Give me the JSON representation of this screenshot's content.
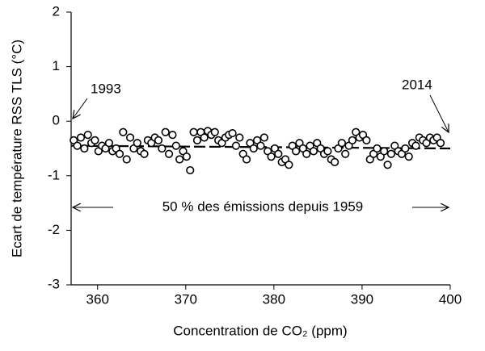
{
  "chart_data": {
    "type": "scatter",
    "xlabel": "Concentration de CO₂ (ppm)",
    "ylabel": "Ecart de température RSS TLS (°C)",
    "annotations": [
      "1993",
      "2014",
      "50 % des émissions depuis 1959"
    ],
    "xlim": [
      357,
      400
    ],
    "xticks": [
      360,
      370,
      380,
      390,
      400
    ],
    "ylim": [
      -3,
      2
    ],
    "yticks": [
      -3,
      -2,
      -1,
      0,
      1,
      2
    ],
    "marker_color": "#ffffff",
    "marker_edge": "#000000",
    "x": [
      357.3,
      357.7,
      358.1,
      358.5,
      358.9,
      359.3,
      359.7,
      360.1,
      360.5,
      360.9,
      361.3,
      361.7,
      362.1,
      362.5,
      362.9,
      363.3,
      363.7,
      364.1,
      364.5,
      364.9,
      365.3,
      365.7,
      366.1,
      366.5,
      366.9,
      367.3,
      367.7,
      368.1,
      368.5,
      368.9,
      369.3,
      369.7,
      370.1,
      370.5,
      370.9,
      371.3,
      371.7,
      372.1,
      372.5,
      372.9,
      373.3,
      373.7,
      374.1,
      374.5,
      374.9,
      375.3,
      375.7,
      376.1,
      376.5,
      376.9,
      377.3,
      377.7,
      378.1,
      378.5,
      378.9,
      379.3,
      379.7,
      380.1,
      380.5,
      380.9,
      381.3,
      381.7,
      382.1,
      382.5,
      382.9,
      383.3,
      383.7,
      384.1,
      384.5,
      384.9,
      385.3,
      385.7,
      386.1,
      386.5,
      386.9,
      387.3,
      387.7,
      388.1,
      388.5,
      388.9,
      389.3,
      389.7,
      390.1,
      390.5,
      390.9,
      391.3,
      391.7,
      392.1,
      392.5,
      392.9,
      393.3,
      393.7,
      394.1,
      394.5,
      394.9,
      395.3,
      395.7,
      396.1,
      396.5,
      396.9,
      397.3,
      397.7,
      398.1,
      398.5,
      398.9
    ],
    "values": [
      -0.35,
      -0.45,
      -0.3,
      -0.5,
      -0.25,
      -0.4,
      -0.35,
      -0.55,
      -0.45,
      -0.5,
      -0.4,
      -0.55,
      -0.5,
      -0.6,
      -0.2,
      -0.7,
      -0.3,
      -0.5,
      -0.4,
      -0.55,
      -0.6,
      -0.35,
      -0.4,
      -0.3,
      -0.35,
      -0.5,
      -0.2,
      -0.6,
      -0.25,
      -0.45,
      -0.7,
      -0.55,
      -0.65,
      -0.9,
      -0.2,
      -0.35,
      -0.2,
      -0.3,
      -0.18,
      -0.25,
      -0.2,
      -0.35,
      -0.4,
      -0.3,
      -0.25,
      -0.22,
      -0.45,
      -0.3,
      -0.6,
      -0.7,
      -0.4,
      -0.5,
      -0.35,
      -0.45,
      -0.3,
      -0.55,
      -0.65,
      -0.5,
      -0.6,
      -0.75,
      -0.7,
      -0.8,
      -0.45,
      -0.55,
      -0.4,
      -0.5,
      -0.6,
      -0.45,
      -0.55,
      -0.4,
      -0.5,
      -0.6,
      -0.55,
      -0.7,
      -0.75,
      -0.5,
      -0.4,
      -0.6,
      -0.45,
      -0.35,
      -0.2,
      -0.3,
      -0.25,
      -0.35,
      -0.7,
      -0.6,
      -0.5,
      -0.65,
      -0.55,
      -0.8,
      -0.6,
      -0.45,
      -0.55,
      -0.6,
      -0.5,
      -0.65,
      -0.4,
      -0.45,
      -0.3,
      -0.35,
      -0.4,
      -0.3,
      -0.35,
      -0.3,
      -0.4
    ],
    "trend": {
      "x": [
        357,
        400
      ],
      "values": [
        -0.45,
        -0.5
      ],
      "color": "#000000"
    }
  }
}
